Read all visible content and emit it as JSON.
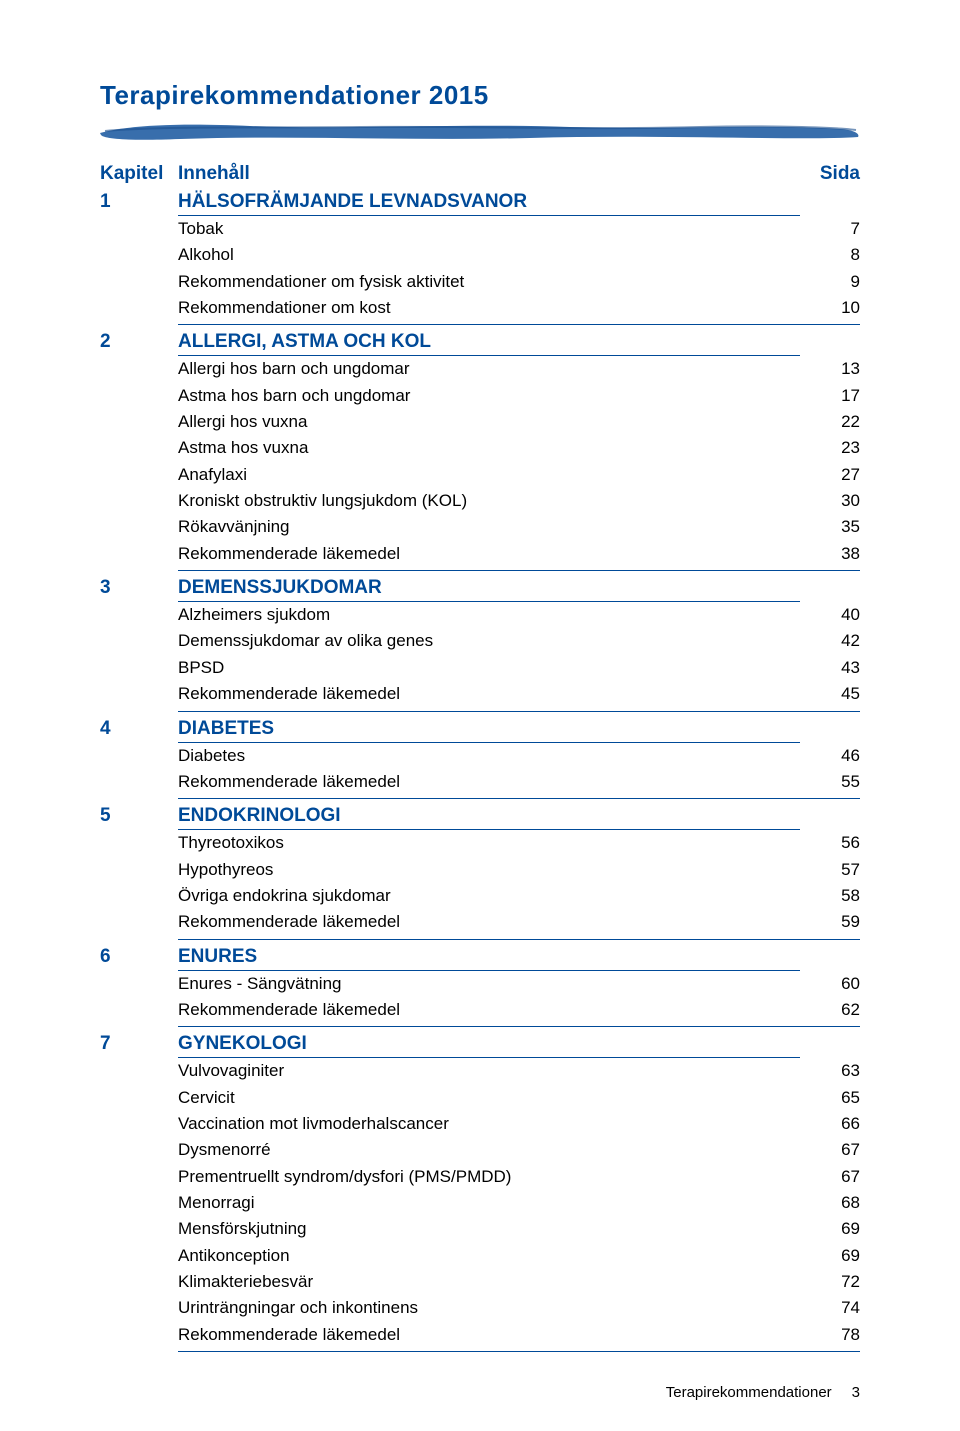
{
  "title": "Terapirekommendationer  2015",
  "header": {
    "chapter": "Kapitel",
    "content": "Innehåll",
    "page": "Sida"
  },
  "colors": {
    "blue": "#004a98",
    "stroke_fill": "#2d66a8",
    "text": "#000000",
    "bg": "#ffffff"
  },
  "sections": [
    {
      "num": "1",
      "title": "HÄLSOFRÄMJANDE LEVNADSVANOR",
      "items": [
        {
          "label": "Tobak",
          "page": "7"
        },
        {
          "label": "Alkohol",
          "page": "8"
        },
        {
          "label": "Rekommendationer om fysisk aktivitet",
          "page": "9"
        },
        {
          "label": "Rekommendationer om kost",
          "page": "10"
        }
      ]
    },
    {
      "num": "2",
      "title": "ALLERGI, ASTMA OCH KOL",
      "items": [
        {
          "label": "Allergi hos barn och ungdomar",
          "page": "13"
        },
        {
          "label": "Astma hos barn och ungdomar",
          "page": "17"
        },
        {
          "label": "Allergi hos vuxna",
          "page": "22"
        },
        {
          "label": "Astma hos vuxna",
          "page": "23"
        },
        {
          "label": "Anafylaxi",
          "page": "27"
        },
        {
          "label": "Kroniskt obstruktiv lungsjukdom (KOL)",
          "page": "30"
        },
        {
          "label": "Rökavvänjning",
          "page": "35"
        },
        {
          "label": "Rekommenderade läkemedel",
          "page": "38"
        }
      ]
    },
    {
      "num": "3",
      "title": "DEMENSSJUKDOMAR",
      "items": [
        {
          "label": "Alzheimers sjukdom",
          "page": "40"
        },
        {
          "label": "Demenssjukdomar av olika genes",
          "page": "42"
        },
        {
          "label": "BPSD",
          "page": "43"
        },
        {
          "label": "Rekommenderade läkemedel",
          "page": "45"
        }
      ]
    },
    {
      "num": "4",
      "title": "DIABETES",
      "items": [
        {
          "label": "Diabetes",
          "page": "46"
        },
        {
          "label": "Rekommenderade läkemedel",
          "page": "55"
        }
      ]
    },
    {
      "num": "5",
      "title": "ENDOKRINOLOGI",
      "items": [
        {
          "label": "Thyreotoxikos",
          "page": "56"
        },
        {
          "label": "Hypothyreos",
          "page": "57"
        },
        {
          "label": "Övriga endokrina sjukdomar",
          "page": "58"
        },
        {
          "label": "Rekommenderade läkemedel",
          "page": "59"
        }
      ]
    },
    {
      "num": "6",
      "title": "ENURES",
      "items": [
        {
          "label": "Enures - Sängvätning",
          "page": "60"
        },
        {
          "label": "Rekommenderade läkemedel",
          "page": "62"
        }
      ]
    },
    {
      "num": "7",
      "title": "GYNEKOLOGI",
      "items": [
        {
          "label": "Vulvovaginiter",
          "page": "63"
        },
        {
          "label": "Cervicit",
          "page": "65"
        },
        {
          "label": "Vaccination mot livmoderhalscancer",
          "page": "66"
        },
        {
          "label": "Dysmenorré",
          "page": "67"
        },
        {
          "label": "Prementruellt syndrom/dysfori (PMS/PMDD)",
          "page": "67"
        },
        {
          "label": "Menorragi",
          "page": "68"
        },
        {
          "label": "Mensförskjutning",
          "page": "69"
        },
        {
          "label": "Antikonception",
          "page": "69"
        },
        {
          "label": "Klimakteriebesvär",
          "page": "72"
        },
        {
          "label": "Urinträngningar och inkontinens",
          "page": "74"
        },
        {
          "label": "Rekommenderade läkemedel",
          "page": "78"
        }
      ]
    }
  ],
  "footer": {
    "label": "Terapirekommendationer",
    "page": "3"
  }
}
